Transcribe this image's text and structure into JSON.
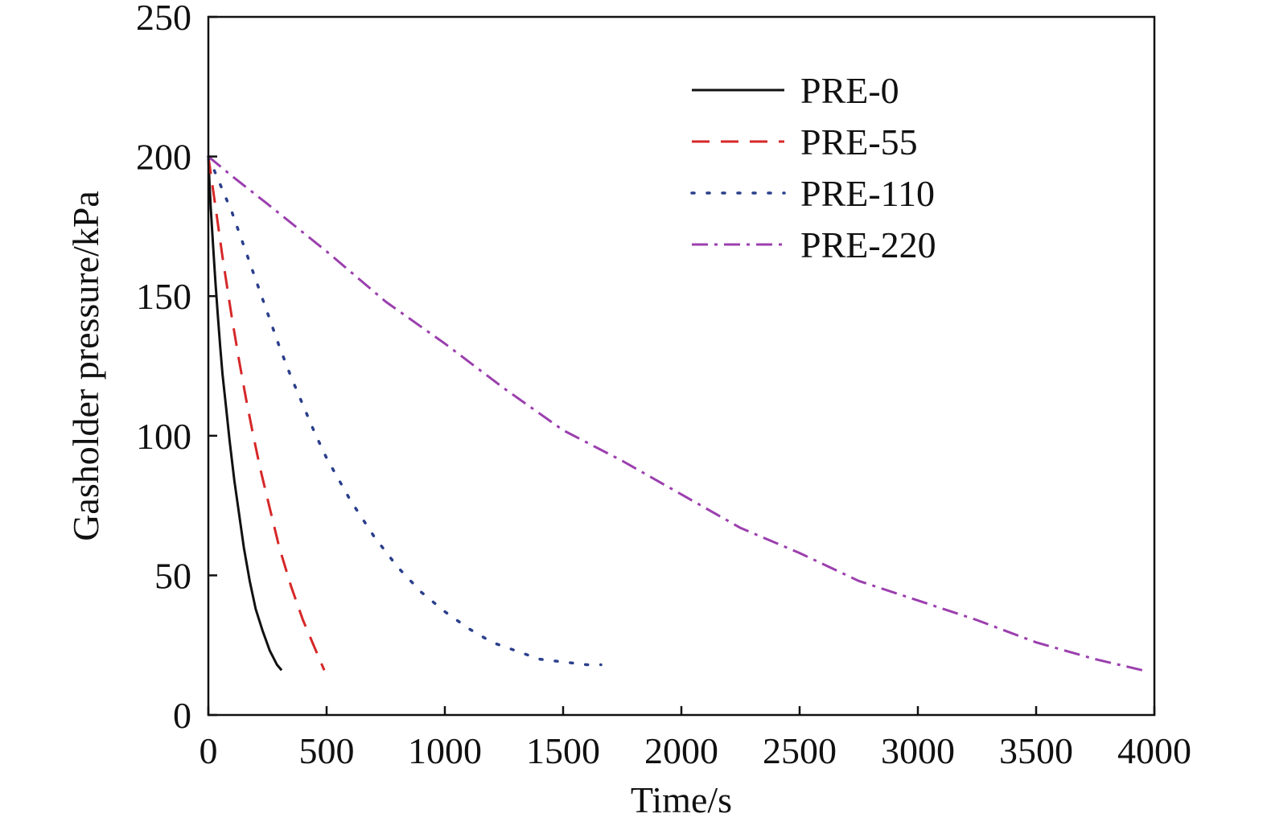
{
  "chart_data": {
    "type": "line",
    "title": "",
    "xlabel": "Time/s",
    "ylabel": "Gasholder pressure/kPa",
    "xlim": [
      0,
      4000
    ],
    "ylim": [
      0,
      250
    ],
    "xticks": [
      0,
      500,
      1000,
      1500,
      2000,
      2500,
      3000,
      3500,
      4000
    ],
    "yticks": [
      0,
      50,
      100,
      150,
      200,
      250
    ],
    "xtick_labels": [
      "0",
      "500",
      "1000",
      "1500",
      "2000",
      "2500",
      "3000",
      "3500",
      "4000"
    ],
    "ytick_labels": [
      "0",
      "50",
      "100",
      "150",
      "200",
      "250"
    ],
    "grid": false,
    "legend_position": "top-right",
    "series": [
      {
        "name": "PRE-0",
        "color": "#111111",
        "style": "solid",
        "x": [
          0,
          5,
          10,
          20,
          30,
          40,
          50,
          60,
          75,
          90,
          110,
          130,
          150,
          175,
          200,
          230,
          260,
          290,
          310
        ],
        "y": [
          200,
          190,
          182,
          168,
          155,
          143,
          132,
          122,
          110,
          98,
          84,
          72,
          60,
          48,
          38,
          30,
          23,
          18,
          16
        ]
      },
      {
        "name": "PRE-55",
        "color": "#d62728",
        "style": "dashed",
        "x": [
          0,
          20,
          40,
          60,
          80,
          100,
          130,
          160,
          190,
          220,
          260,
          300,
          350,
          400,
          450,
          490
        ],
        "y": [
          200,
          188,
          176,
          164,
          153,
          142,
          127,
          113,
          100,
          88,
          74,
          60,
          46,
          34,
          24,
          16
        ]
      },
      {
        "name": "PRE-110",
        "color": "#2b3f8c",
        "style": "dotted",
        "x": [
          0,
          50,
          100,
          150,
          200,
          250,
          300,
          350,
          400,
          450,
          500,
          600,
          700,
          800,
          900,
          1000,
          1100,
          1200,
          1300,
          1400,
          1500,
          1600,
          1660
        ],
        "y": [
          200,
          190,
          180,
          168,
          156,
          144,
          132,
          121,
          111,
          101,
          92,
          77,
          64,
          53,
          44,
          37,
          31,
          26,
          23,
          20,
          19,
          18,
          18
        ]
      },
      {
        "name": "PRE-220",
        "color": "#9b3fae",
        "style": "dashdot",
        "x": [
          0,
          100,
          250,
          500,
          750,
          1000,
          1250,
          1500,
          1750,
          2000,
          2250,
          2500,
          2750,
          3000,
          3250,
          3500,
          3750,
          3950
        ],
        "y": [
          200,
          193,
          183,
          166,
          148,
          133,
          117,
          102,
          91,
          79,
          67,
          58,
          48,
          41,
          34,
          26,
          20,
          16
        ]
      }
    ]
  }
}
